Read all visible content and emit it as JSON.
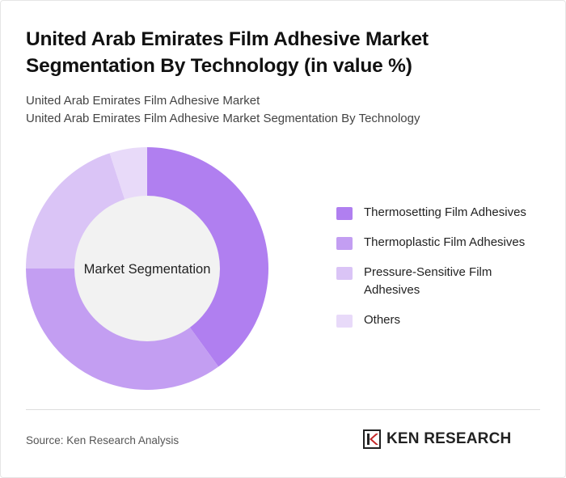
{
  "title": "United Arab Emirates Film Adhesive Market Segmentation By Technology (in value %)",
  "subtitle_lines": [
    "United Arab Emirates Film Adhesive Market",
    "United Arab Emirates Film Adhesive Market Segmentation By Technology"
  ],
  "source": "Source: Ken Research Analysis",
  "brand": {
    "name": "KEN RESEARCH"
  },
  "chart_data": {
    "type": "pie",
    "donut": true,
    "center_label": "Market Segmentation",
    "legend_position": "right",
    "categories": [
      "Thermosetting Film Adhesives",
      "Thermoplastic Film Adhesives",
      "Pressure-Sensitive Film Adhesives",
      "Others"
    ],
    "values": [
      40,
      35,
      20,
      5
    ],
    "colors": [
      "#b07ff0",
      "#c39ef2",
      "#dac4f6",
      "#e8daf9"
    ],
    "hole_color": "#f2f2f2"
  }
}
